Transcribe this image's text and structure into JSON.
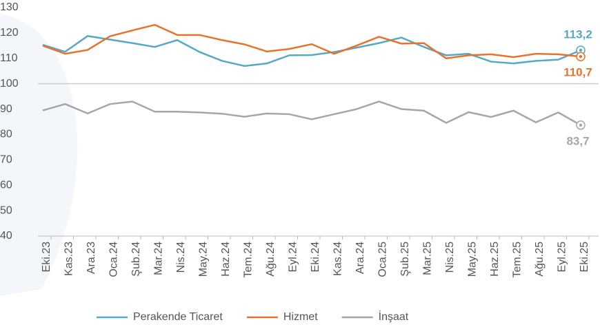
{
  "chart_data": {
    "type": "line",
    "categories": [
      "Eki.23",
      "Kas.23",
      "Ara.23",
      "Oca.24",
      "Şub.24",
      "Mar.24",
      "Nis.24",
      "May.24",
      "Haz.24",
      "Tem.24",
      "Ağu.24",
      "Eyl.24",
      "Eki.24",
      "Kas.24",
      "Ara.24",
      "Oca.25",
      "Şub.25",
      "Mar.25",
      "Nis.25",
      "May.25",
      "Haz.25",
      "Tem.25",
      "Ağu.25",
      "Eyl.25",
      "Eki.25"
    ],
    "series": [
      {
        "name": "Perakende Ticaret",
        "color": "#55a8c6",
        "values": [
          115.3,
          112.6,
          118.8,
          117.4,
          116,
          114.5,
          117.2,
          112.5,
          109,
          107,
          108,
          111.2,
          111.3,
          112.5,
          114.2,
          116,
          118.2,
          114.5,
          111.2,
          111.8,
          108.7,
          108,
          109,
          109.5,
          113.2
        ],
        "value_labels": [
          null,
          null,
          null,
          null,
          null,
          null,
          null,
          null,
          null,
          null,
          null,
          null,
          null,
          null,
          null,
          null,
          null,
          null,
          null,
          null,
          null,
          null,
          null,
          null,
          "113,2"
        ]
      },
      {
        "name": "Hizmet",
        "color": "#e8722a",
        "values": [
          115,
          111.8,
          113.3,
          118.7,
          121,
          123.2,
          119.2,
          119.2,
          117.2,
          115.5,
          112.7,
          113.7,
          115.6,
          111.8,
          115,
          118.5,
          115.8,
          116,
          110,
          111.2,
          111.6,
          110.5,
          111.8,
          111.6,
          110.7
        ],
        "value_labels": [
          null,
          null,
          null,
          null,
          null,
          null,
          null,
          null,
          null,
          null,
          null,
          null,
          null,
          null,
          null,
          null,
          null,
          null,
          null,
          null,
          null,
          null,
          null,
          null,
          "110,7"
        ]
      },
      {
        "name": "İnşaat",
        "color": "#a6a6a6",
        "values": [
          89.5,
          92,
          88.3,
          92,
          93,
          89,
          89,
          88.7,
          88.2,
          87,
          88.3,
          88,
          86,
          88,
          90,
          93,
          90,
          89.4,
          84.6,
          88.8,
          86.9,
          89.4,
          84.8,
          88.7,
          83.7
        ],
        "value_labels": [
          null,
          null,
          null,
          null,
          null,
          null,
          null,
          null,
          null,
          null,
          null,
          null,
          null,
          null,
          null,
          null,
          null,
          null,
          null,
          null,
          null,
          null,
          null,
          null,
          "83,7"
        ]
      }
    ],
    "ylim": [
      40,
      130
    ],
    "yticks": [
      40,
      50,
      60,
      70,
      80,
      90,
      100,
      110,
      120,
      130
    ],
    "hline": 100,
    "legend": "bottom"
  }
}
